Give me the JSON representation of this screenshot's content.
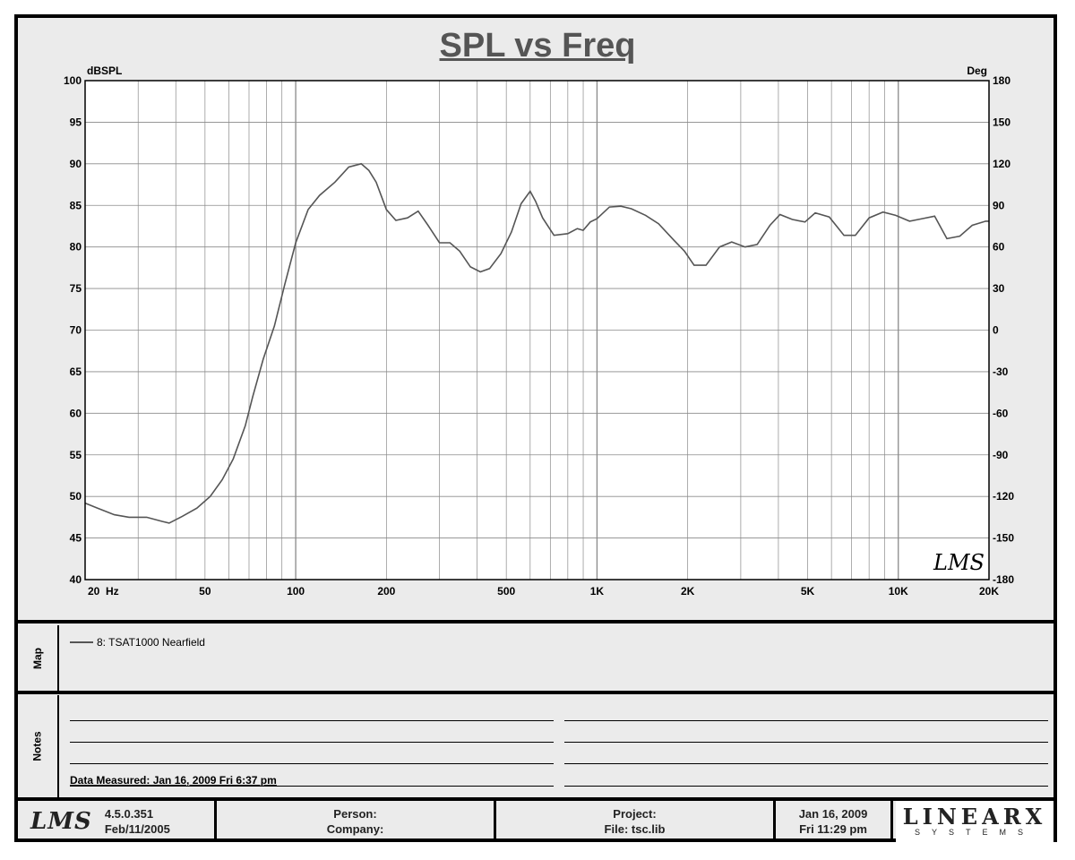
{
  "title": "SPL vs Freq",
  "chart_data": {
    "type": "line",
    "title": "SPL vs Freq",
    "ylabel_left": "dBSPL",
    "ylabel_right": "Deg",
    "xscale": "log",
    "xlim": [
      20,
      20000
    ],
    "ylim": [
      40,
      100
    ],
    "ylim_right": [
      -180,
      180
    ],
    "grid": true,
    "x_tick_labels": [
      {
        "value": 20,
        "label": "20  Hz"
      },
      {
        "value": 50,
        "label": "50"
      },
      {
        "value": 100,
        "label": "100"
      },
      {
        "value": 200,
        "label": "200"
      },
      {
        "value": 500,
        "label": "500"
      },
      {
        "value": 1000,
        "label": "1K"
      },
      {
        "value": 2000,
        "label": "2K"
      },
      {
        "value": 5000,
        "label": "5K"
      },
      {
        "value": 10000,
        "label": "10K"
      },
      {
        "value": 20000,
        "label": "20K"
      }
    ],
    "y_ticks_left": [
      100,
      95,
      90,
      85,
      80,
      75,
      70,
      65,
      60,
      55,
      50,
      45,
      40
    ],
    "y_ticks_right": [
      180,
      150,
      120,
      90,
      60,
      30,
      0,
      -30,
      -60,
      -90,
      -120,
      -150,
      -180
    ],
    "series": [
      {
        "name": "8: TSAT1000 Nearfield",
        "color": "#555555",
        "x": [
          20,
          22,
          25,
          28,
          32,
          36,
          38,
          42,
          47,
          52,
          57,
          62,
          68,
          72,
          78,
          85,
          92,
          100,
          110,
          120,
          135,
          150,
          165,
          175,
          185,
          200,
          215,
          235,
          255,
          275,
          300,
          325,
          350,
          380,
          410,
          440,
          480,
          520,
          560,
          600,
          625,
          660,
          720,
          800,
          860,
          900,
          950,
          1000,
          1100,
          1200,
          1300,
          1450,
          1600,
          1800,
          1950,
          2100,
          2300,
          2550,
          2800,
          3100,
          3400,
          3750,
          4050,
          4450,
          4900,
          5300,
          5900,
          6600,
          7200,
          8000,
          8900,
          9800,
          10900,
          12000,
          13200,
          14500,
          16000,
          17600,
          19500,
          20000
        ],
        "y": [
          49.2,
          48.6,
          47.8,
          47.5,
          47.5,
          47.0,
          46.8,
          47.6,
          48.6,
          50.0,
          52.0,
          54.5,
          58.5,
          62.0,
          66.5,
          70.5,
          75.5,
          80.5,
          84.5,
          86.2,
          87.8,
          89.6,
          90.0,
          89.2,
          87.8,
          84.5,
          83.2,
          83.5,
          84.3,
          82.6,
          80.5,
          80.5,
          79.5,
          77.6,
          77.0,
          77.4,
          79.2,
          81.8,
          85.2,
          86.7,
          85.5,
          83.5,
          81.4,
          81.6,
          82.2,
          82.0,
          83.0,
          83.4,
          84.8,
          84.9,
          84.6,
          83.8,
          82.8,
          80.8,
          79.5,
          77.8,
          77.8,
          80.0,
          80.6,
          80.0,
          80.3,
          82.6,
          83.9,
          83.3,
          83.0,
          84.1,
          83.6,
          81.4,
          81.4,
          83.5,
          84.2,
          83.8,
          83.1,
          83.4,
          83.7,
          81.0,
          81.3,
          82.6,
          83.1,
          83.1
        ]
      }
    ],
    "watermark": "LMS"
  },
  "map": {
    "label": "Map",
    "legend_entry": "8: TSAT1000 Nearfield"
  },
  "notes": {
    "label": "Notes",
    "data_measured": "Data Measured: Jan 16, 2009  Fri  6:37 pm"
  },
  "footer": {
    "logo": "LMS",
    "version": "4.5.0.351",
    "version_date": "Feb/11/2005",
    "person_label": "Person:",
    "company_label": "Company:",
    "project_label": "Project:",
    "file_label": "File: tsc.lib",
    "date": "Jan 16, 2009",
    "time": "Fri 11:29 pm",
    "brand": "LINEARX",
    "brand_sub": "SYSTEMS"
  }
}
